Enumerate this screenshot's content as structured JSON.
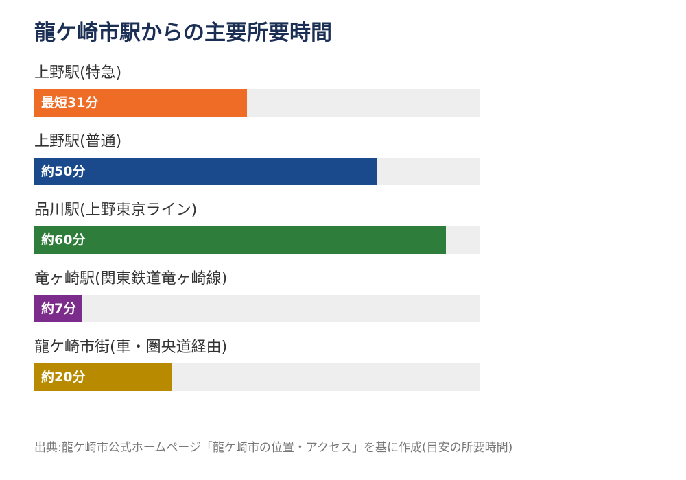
{
  "chart_data": {
    "type": "bar",
    "orientation": "horizontal",
    "title": "龍ケ崎市駅からの主要所要時間",
    "unit": "分",
    "xlim": [
      0,
      65
    ],
    "grid": false,
    "legend": "none",
    "categories": [
      "上野駅(特急)",
      "上野駅(普通)",
      "品川駅(上野東京ライン)",
      "竜ヶ崎駅(関東鉄道竜ヶ崎線)",
      "龍ケ崎市街(車・圏央道経由)"
    ],
    "values": [
      31,
      50,
      60,
      7,
      20
    ],
    "data_labels": [
      "最短31分",
      "約50分",
      "約60分",
      "約7分",
      "約20分"
    ],
    "colors": [
      "#ee6c25",
      "#1a4a8c",
      "#2e7d3a",
      "#7c2d8b",
      "#b88a00"
    ],
    "source": "出典:龍ケ崎市公式ホームページ「龍ケ崎市の位置・アクセス」を基に作成(目安の所要時間)"
  }
}
